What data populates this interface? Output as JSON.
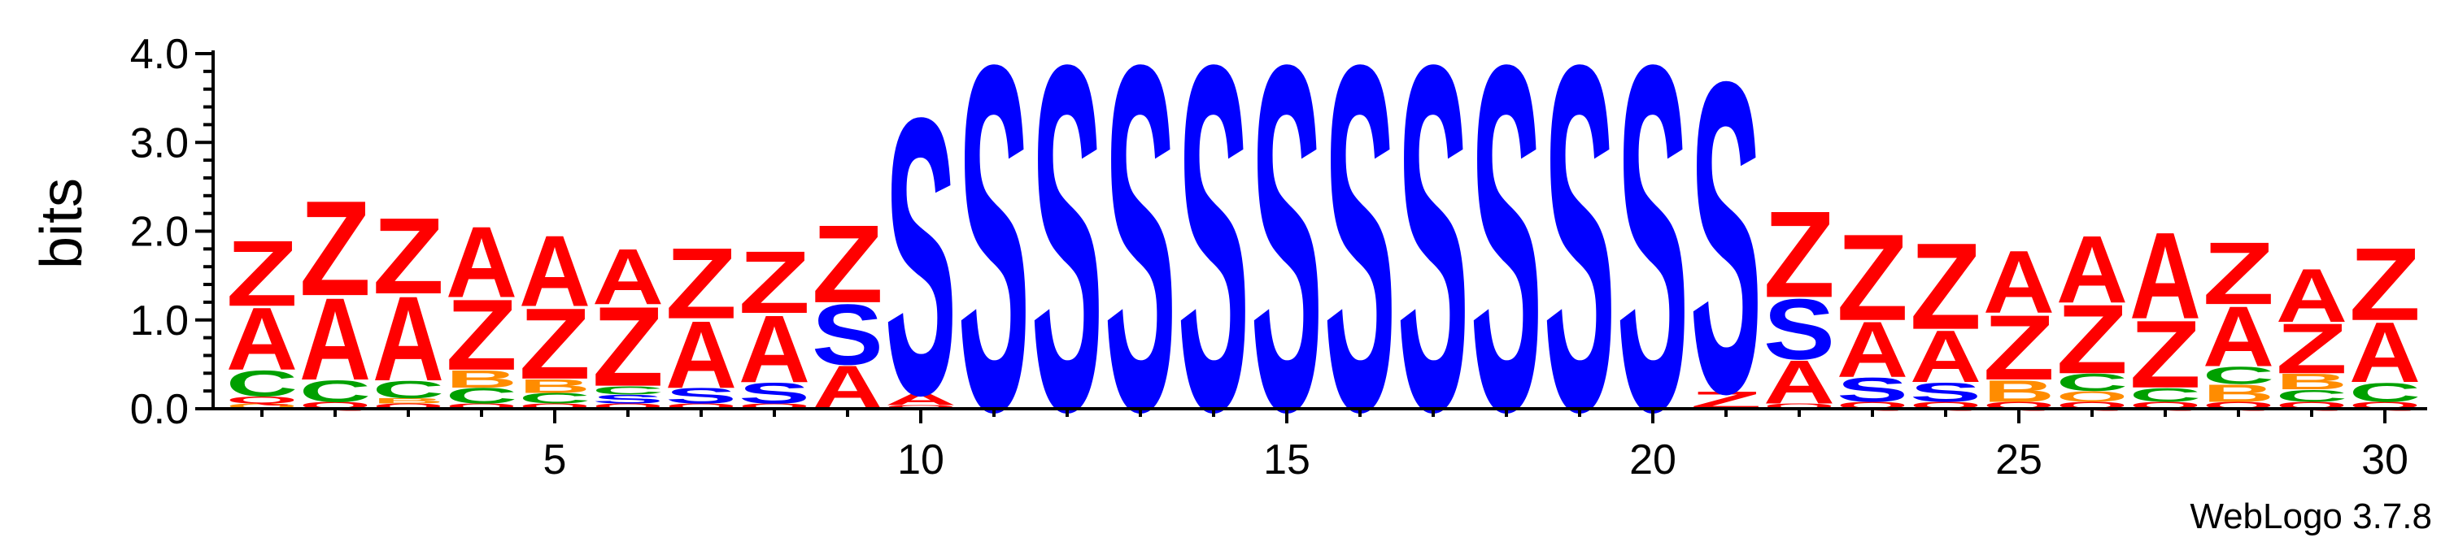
{
  "chart_data": {
    "type": "sequence-logo",
    "ylabel": "bits",
    "ylim": [
      0,
      4.0
    ],
    "y_ticks": [
      "0.0",
      "1.0",
      "2.0",
      "3.0",
      "4.0"
    ],
    "x_ticks": [
      "5",
      "10",
      "15",
      "20",
      "25",
      "30"
    ],
    "x_tick_positions": [
      5,
      10,
      15,
      20,
      25,
      30
    ],
    "credit": "WebLogo 3.7.8",
    "colors": {
      "S": "#0000ff",
      "Z": "#ff0000",
      "A": "#ff0000",
      "C": "#00a000",
      "B": "#ff8c00",
      "Q": "#ff0000",
      "O": "#ff8c00",
      "M": "#ff0000"
    },
    "positions": [
      {
        "pos": 1,
        "stack": [
          [
            "O",
            0.06
          ],
          [
            "Q",
            0.08
          ],
          [
            "C",
            0.3
          ],
          [
            "A",
            0.72
          ],
          [
            "Z",
            0.76
          ]
        ]
      },
      {
        "pos": 2,
        "stack": [
          [
            "Q",
            0.08
          ],
          [
            "C",
            0.25
          ],
          [
            "A",
            0.95
          ],
          [
            "Z",
            1.1
          ]
        ]
      },
      {
        "pos": 3,
        "stack": [
          [
            "Q",
            0.06
          ],
          [
            "B",
            0.06
          ],
          [
            "C",
            0.2
          ],
          [
            "A",
            0.98
          ],
          [
            "Z",
            0.88
          ]
        ]
      },
      {
        "pos": 4,
        "stack": [
          [
            "Q",
            0.06
          ],
          [
            "C",
            0.18
          ],
          [
            "B",
            0.2
          ],
          [
            "Z",
            0.82
          ],
          [
            "A",
            0.82
          ]
        ]
      },
      {
        "pos": 5,
        "stack": [
          [
            "Q",
            0.06
          ],
          [
            "C",
            0.12
          ],
          [
            "B",
            0.16
          ],
          [
            "Z",
            0.82
          ],
          [
            "A",
            0.82
          ]
        ]
      },
      {
        "pos": 6,
        "stack": [
          [
            "Q",
            0.06
          ],
          [
            "S",
            0.1
          ],
          [
            "C",
            0.1
          ],
          [
            "Z",
            0.92
          ],
          [
            "A",
            0.64
          ]
        ]
      },
      {
        "pos": 7,
        "stack": [
          [
            "Q",
            0.06
          ],
          [
            "S",
            0.18
          ],
          [
            "A",
            0.78
          ],
          [
            "Z",
            0.82
          ]
        ]
      },
      {
        "pos": 8,
        "stack": [
          [
            "Q",
            0.06
          ],
          [
            "S",
            0.24
          ],
          [
            "A",
            0.78
          ],
          [
            "Z",
            0.72
          ]
        ]
      },
      {
        "pos": 9,
        "stack": [
          [
            "A",
            0.5
          ],
          [
            "S",
            0.7
          ],
          [
            "Z",
            0.9
          ]
        ]
      },
      {
        "pos": 10,
        "stack": [
          [
            "Q",
            0.04
          ],
          [
            "A",
            0.14
          ],
          [
            "S",
            3.2
          ]
        ]
      },
      {
        "pos": 11,
        "stack": [
          [
            "S",
            4.0
          ]
        ]
      },
      {
        "pos": 12,
        "stack": [
          [
            "S",
            4.0
          ]
        ]
      },
      {
        "pos": 13,
        "stack": [
          [
            "S",
            4.0
          ]
        ]
      },
      {
        "pos": 14,
        "stack": [
          [
            "S",
            4.0
          ]
        ]
      },
      {
        "pos": 15,
        "stack": [
          [
            "S",
            4.0
          ]
        ]
      },
      {
        "pos": 16,
        "stack": [
          [
            "S",
            4.0
          ]
        ]
      },
      {
        "pos": 17,
        "stack": [
          [
            "S",
            4.0
          ]
        ]
      },
      {
        "pos": 18,
        "stack": [
          [
            "S",
            4.0
          ]
        ]
      },
      {
        "pos": 19,
        "stack": [
          [
            "S",
            4.0
          ]
        ]
      },
      {
        "pos": 20,
        "stack": [
          [
            "S",
            4.0
          ]
        ]
      },
      {
        "pos": 21,
        "stack": [
          [
            "Z",
            0.2
          ],
          [
            "S",
            3.6
          ]
        ]
      },
      {
        "pos": 22,
        "stack": [
          [
            "Q",
            0.06
          ],
          [
            "A",
            0.5
          ],
          [
            "S",
            0.7
          ],
          [
            "Z",
            1.0
          ]
        ]
      },
      {
        "pos": 23,
        "stack": [
          [
            "Q",
            0.08
          ],
          [
            "S",
            0.28
          ],
          [
            "A",
            0.64
          ],
          [
            "Z",
            1.0
          ]
        ]
      },
      {
        "pos": 24,
        "stack": [
          [
            "Q",
            0.08
          ],
          [
            "S",
            0.22
          ],
          [
            "A",
            0.6
          ],
          [
            "Z",
            1.0
          ]
        ]
      },
      {
        "pos": 25,
        "stack": [
          [
            "Q",
            0.08
          ],
          [
            "B",
            0.25
          ],
          [
            "Z",
            0.75
          ],
          [
            "A",
            0.72
          ]
        ]
      },
      {
        "pos": 26,
        "stack": [
          [
            "Q",
            0.08
          ],
          [
            "O",
            0.12
          ],
          [
            "C",
            0.2
          ],
          [
            "Z",
            0.8
          ],
          [
            "A",
            0.78
          ]
        ]
      },
      {
        "pos": 27,
        "stack": [
          [
            "Q",
            0.08
          ],
          [
            "C",
            0.16
          ],
          [
            "Z",
            0.78
          ],
          [
            "A",
            1.0
          ]
        ]
      },
      {
        "pos": 28,
        "stack": [
          [
            "Q",
            0.08
          ],
          [
            "B",
            0.2
          ],
          [
            "C",
            0.2
          ],
          [
            "A",
            0.7
          ],
          [
            "Z",
            0.72
          ]
        ]
      },
      {
        "pos": 29,
        "stack": [
          [
            "Q",
            0.08
          ],
          [
            "C",
            0.14
          ],
          [
            "B",
            0.18
          ],
          [
            "Z",
            0.58
          ],
          [
            "A",
            0.62
          ]
        ]
      },
      {
        "pos": 30,
        "stack": [
          [
            "Q",
            0.08
          ],
          [
            "C",
            0.22
          ],
          [
            "A",
            0.7
          ],
          [
            "Z",
            0.84
          ]
        ]
      }
    ]
  }
}
